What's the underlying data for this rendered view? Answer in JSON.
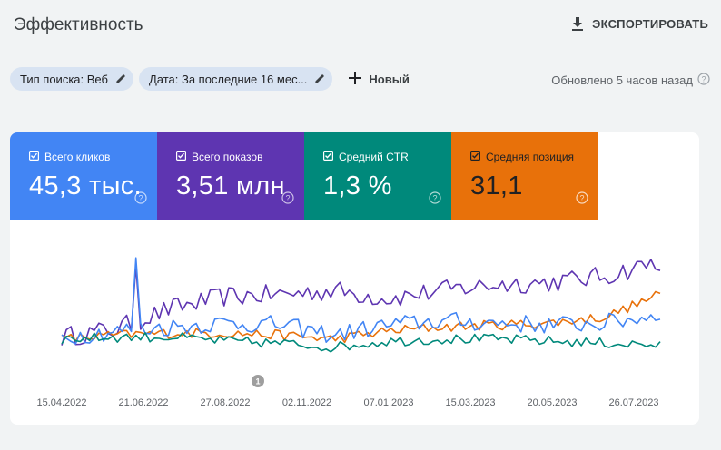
{
  "header": {
    "title": "Эффективность",
    "export_label": "ЭКСПОРТИРОВАТЬ"
  },
  "filters": {
    "search_type": "Тип поиска: Веб",
    "date": "Дата: За последние 16 мес...",
    "new_label": "Новый",
    "updated": "Обновлено 5 часов назад"
  },
  "metrics": [
    {
      "label": "Всего кликов",
      "value": "45,3 тыс.",
      "color": "#4285f4"
    },
    {
      "label": "Всего показов",
      "value": "3,51 млн",
      "color": "#5e35b1"
    },
    {
      "label": "Средний CTR",
      "value": "1,3 %",
      "color": "#00897b"
    },
    {
      "label": "Средняя позиция",
      "value": "31,1",
      "color": "#e8710a"
    }
  ],
  "chart_data": {
    "type": "line",
    "x_tick_labels": [
      "15.04.2022",
      "21.06.2022",
      "27.08.2022",
      "02.11.2022",
      "07.01.2023",
      "15.03.2023",
      "20.05.2023",
      "26.07.2023"
    ],
    "x_range": [
      "2022-04-01",
      "2023-08-01"
    ],
    "annotation": "1",
    "series": [
      {
        "name": "Всего показов",
        "color": "#5e35b1",
        "trend": [
          0.2,
          0.28,
          0.48,
          0.6,
          0.62,
          0.66,
          0.58,
          0.66,
          0.72,
          0.74,
          0.8,
          0.95
        ],
        "noise": 0.1
      },
      {
        "name": "Средняя позиция",
        "color": "#e8710a",
        "trend": [
          0.18,
          0.22,
          0.24,
          0.24,
          0.22,
          0.18,
          0.26,
          0.3,
          0.32,
          0.34,
          0.4,
          0.62
        ],
        "noise": 0.05
      },
      {
        "name": "Всего кликов",
        "color": "#4285f4",
        "trend": [
          0.2,
          0.26,
          0.3,
          0.34,
          0.32,
          0.22,
          0.32,
          0.36,
          0.34,
          0.32,
          0.34,
          0.42
        ],
        "noise": 0.09
      },
      {
        "name": "Средний CTR",
        "color": "#00897b",
        "trend": [
          0.18,
          0.2,
          0.2,
          0.16,
          0.14,
          0.1,
          0.16,
          0.18,
          0.18,
          0.16,
          0.14,
          0.12
        ],
        "noise": 0.05
      }
    ]
  }
}
